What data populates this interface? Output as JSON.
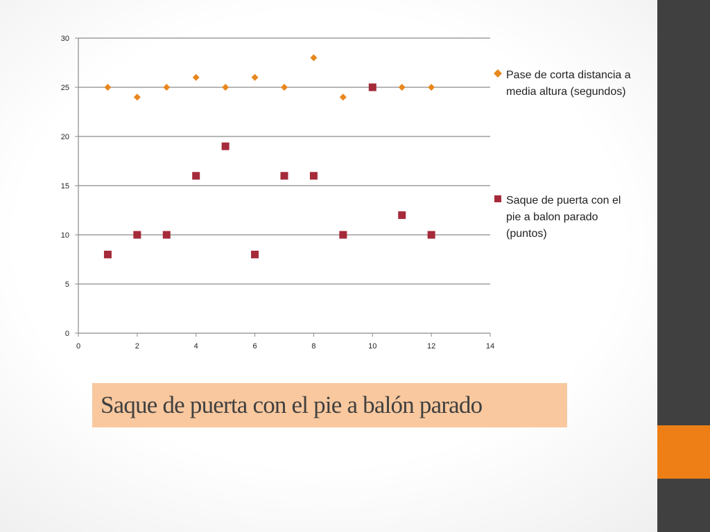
{
  "slide": {
    "title": "Saque de puerta con el pie  a balón parado",
    "sidebar_color": "#404040",
    "accent_color": "#ee7f16",
    "title_bg_color": "#f9c89e"
  },
  "chart_data": {
    "type": "scatter",
    "xlim": [
      0,
      14
    ],
    "ylim": [
      0,
      30
    ],
    "x_ticks": [
      0,
      2,
      4,
      6,
      8,
      10,
      12,
      14
    ],
    "y_ticks": [
      0,
      5,
      10,
      15,
      20,
      25,
      30
    ],
    "grid": "horizontal",
    "legend_position": "right",
    "series": [
      {
        "name": "Pase de corta distancia a media altura (segundos)",
        "marker": "diamond",
        "color": "#e8871e",
        "x": [
          1,
          2,
          3,
          4,
          5,
          6,
          7,
          8,
          9,
          10,
          11,
          12
        ],
        "y": [
          25,
          24,
          25,
          26,
          25,
          26,
          25,
          28,
          24,
          25,
          25,
          25
        ]
      },
      {
        "name": "Saque de puerta con el pie  a balon parado (puntos)",
        "marker": "square",
        "color": "#a52a3a",
        "x": [
          1,
          2,
          3,
          4,
          5,
          6,
          7,
          8,
          9,
          10,
          11,
          12
        ],
        "y": [
          8,
          10,
          10,
          16,
          19,
          8,
          16,
          16,
          10,
          25,
          12,
          10
        ]
      }
    ]
  }
}
